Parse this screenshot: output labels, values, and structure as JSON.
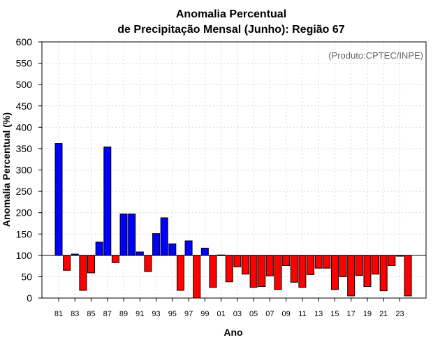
{
  "chart_data": {
    "type": "bar",
    "title_line1": "Anomalia Percentual",
    "title_line2": "de Precipitação Mensal (Junho): Região 67",
    "xlabel": "Ano",
    "ylabel": "Anomalia Percentual (%)",
    "credit": "(Produto:CPTEC/INPE)",
    "baseline": 100,
    "ylim": [
      0,
      600
    ],
    "yticks": [
      0,
      50,
      100,
      150,
      200,
      250,
      300,
      350,
      400,
      450,
      500,
      550,
      600
    ],
    "ytick_labels": [
      "0",
      "50",
      "100",
      "150",
      "200",
      "250",
      "300",
      "350",
      "400",
      "450",
      "500",
      "550",
      "600"
    ],
    "grid": true,
    "colors": {
      "above": "#0000ff",
      "below": "#ff0000",
      "edge": "#000000",
      "grid": "#d9d9d9"
    },
    "categories": [
      "1981",
      "1982",
      "1983",
      "1984",
      "1985",
      "1986",
      "1987",
      "1988",
      "1989",
      "1990",
      "1991",
      "1992",
      "1993",
      "1994",
      "1995",
      "1996",
      "1997",
      "1998",
      "1999",
      "2000",
      "2001",
      "2002",
      "2003",
      "2004",
      "2005",
      "2006",
      "2007",
      "2008",
      "2009",
      "2010",
      "2011",
      "2012",
      "2013",
      "2014",
      "2015",
      "2016",
      "2017",
      "2018",
      "2019",
      "2020",
      "2021",
      "2022",
      "2023",
      "2024"
    ],
    "values": [
      362,
      65,
      103,
      18,
      59,
      131,
      354,
      83,
      197,
      197,
      108,
      62,
      151,
      188,
      127,
      18,
      134,
      0,
      117,
      25,
      101,
      38,
      73,
      56,
      25,
      27,
      52,
      20,
      76,
      37,
      25,
      55,
      70,
      70,
      20,
      50,
      5,
      53,
      27,
      56,
      17,
      76,
      98,
      5
    ],
    "xtick_labels": [
      {
        "index": 0,
        "label": "81"
      },
      {
        "index": 2,
        "label": "83"
      },
      {
        "index": 4,
        "label": "85"
      },
      {
        "index": 6,
        "label": "87"
      },
      {
        "index": 8,
        "label": "89"
      },
      {
        "index": 10,
        "label": "91"
      },
      {
        "index": 12,
        "label": "93"
      },
      {
        "index": 14,
        "label": "95"
      },
      {
        "index": 16,
        "label": "97"
      },
      {
        "index": 18,
        "label": "99"
      },
      {
        "index": 20,
        "label": "01"
      },
      {
        "index": 22,
        "label": "03"
      },
      {
        "index": 24,
        "label": "05"
      },
      {
        "index": 26,
        "label": "07"
      },
      {
        "index": 28,
        "label": "09"
      },
      {
        "index": 30,
        "label": "11"
      },
      {
        "index": 32,
        "label": "13"
      },
      {
        "index": 34,
        "label": "15"
      },
      {
        "index": 36,
        "label": "17"
      },
      {
        "index": 38,
        "label": "19"
      },
      {
        "index": 40,
        "label": "21"
      },
      {
        "index": 42,
        "label": "23"
      }
    ]
  }
}
